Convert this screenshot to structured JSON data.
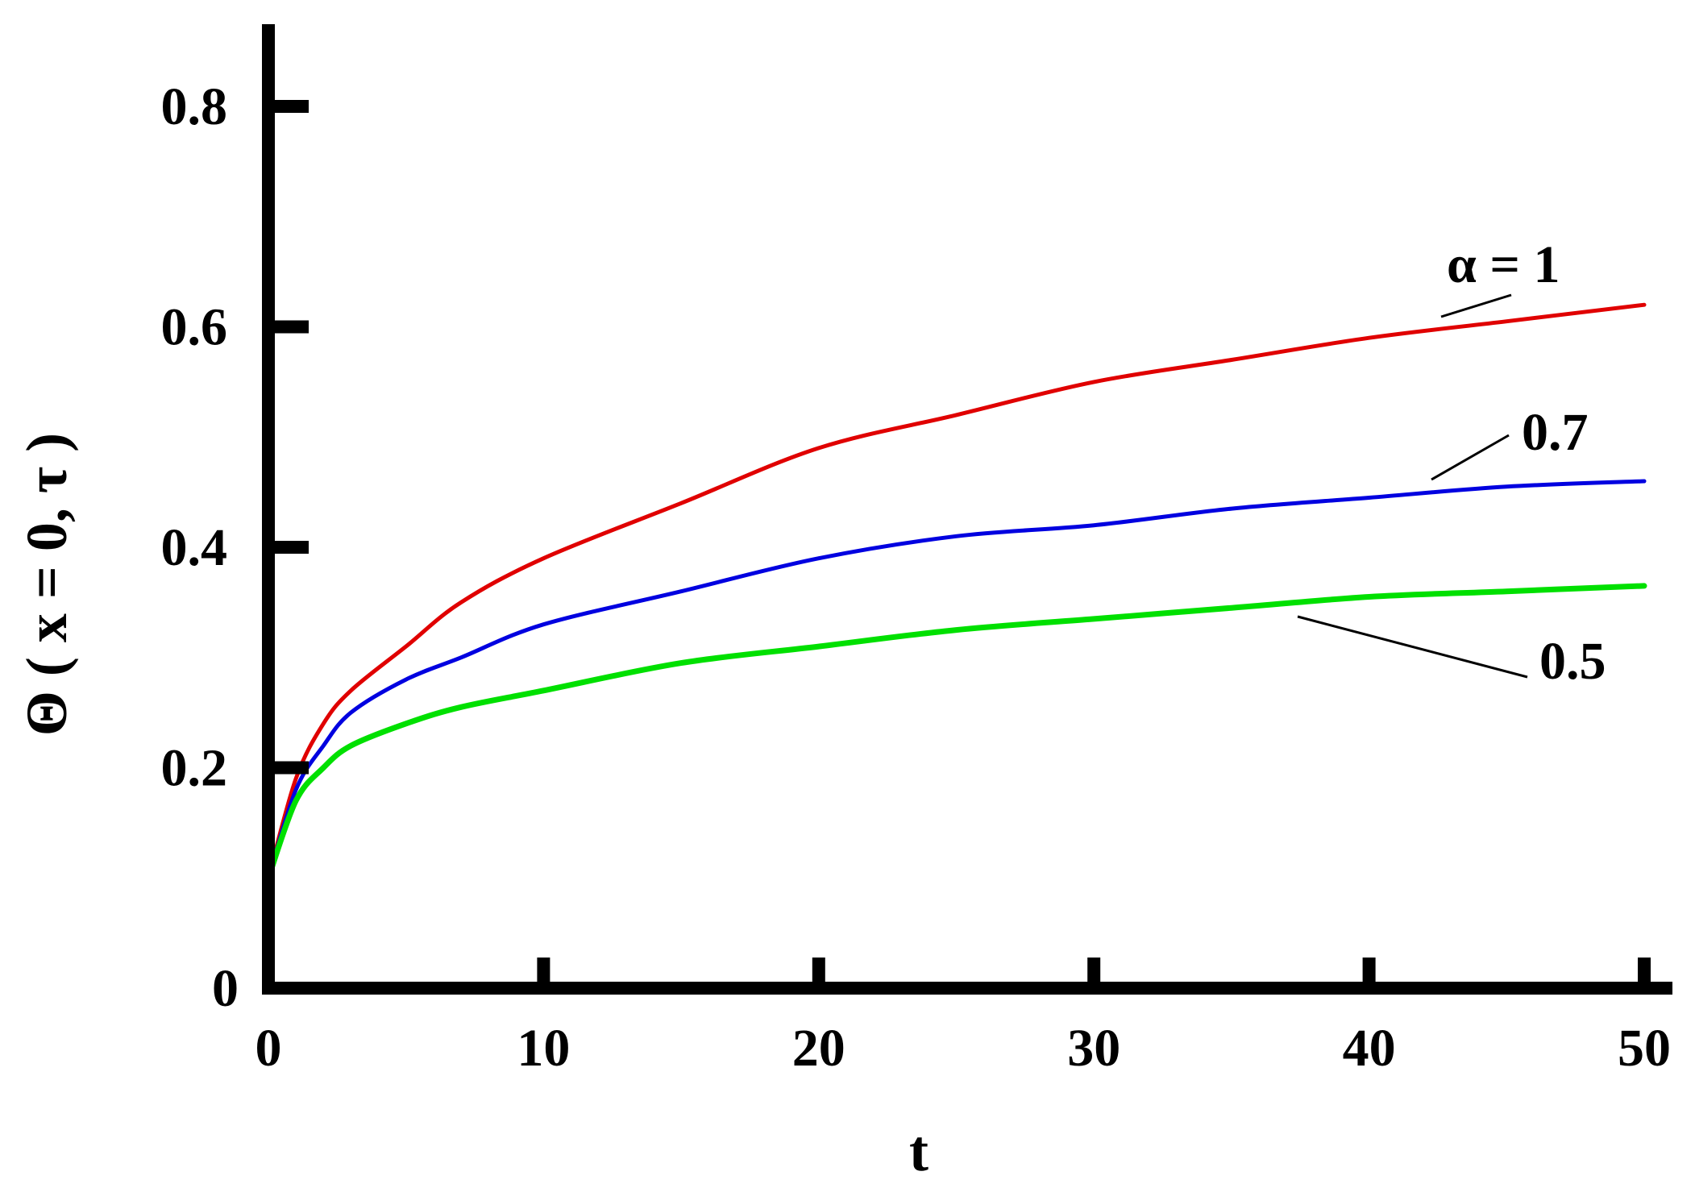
{
  "chart_data": {
    "type": "line",
    "title": "",
    "xlabel": "t",
    "ylabel": "Θ ( x = 0, τ )",
    "xlim": [
      0,
      50
    ],
    "ylim": [
      0,
      0.8
    ],
    "xticks": [
      0,
      10,
      20,
      30,
      40,
      50
    ],
    "xtick_labels": [
      "0",
      "10",
      "20",
      "30",
      "40",
      "50"
    ],
    "yticks": [
      0,
      0.2,
      0.4,
      0.6,
      0.8
    ],
    "ytick_labels": [
      "0",
      "0.2",
      "0.4",
      "0.6",
      "0.8"
    ],
    "grid": false,
    "legend": "none",
    "x": [
      0,
      1,
      2,
      3,
      5,
      7,
      10,
      15,
      20,
      25,
      30,
      35,
      40,
      45,
      50
    ],
    "series": [
      {
        "name": "α = 1",
        "color": "#e00000",
        "values": [
          0.1,
          0.19,
          0.24,
          0.27,
          0.31,
          0.35,
          0.39,
          0.44,
          0.49,
          0.52,
          0.55,
          0.57,
          0.59,
          0.605,
          0.62
        ]
      },
      {
        "name": "0.7",
        "color": "#0000e0",
        "values": [
          0.1,
          0.18,
          0.22,
          0.25,
          0.28,
          0.3,
          0.33,
          0.36,
          0.39,
          0.41,
          0.42,
          0.435,
          0.445,
          0.455,
          0.46
        ]
      },
      {
        "name": "0.5",
        "color": "#00e000",
        "values": [
          0.1,
          0.17,
          0.2,
          0.22,
          0.24,
          0.255,
          0.27,
          0.295,
          0.31,
          0.325,
          0.335,
          0.345,
          0.355,
          0.36,
          0.365
        ]
      }
    ],
    "annotations": [
      {
        "text": "α = 1",
        "series": 0
      },
      {
        "text": "0.7",
        "series": 1
      },
      {
        "text": "0.5",
        "series": 2
      }
    ]
  }
}
